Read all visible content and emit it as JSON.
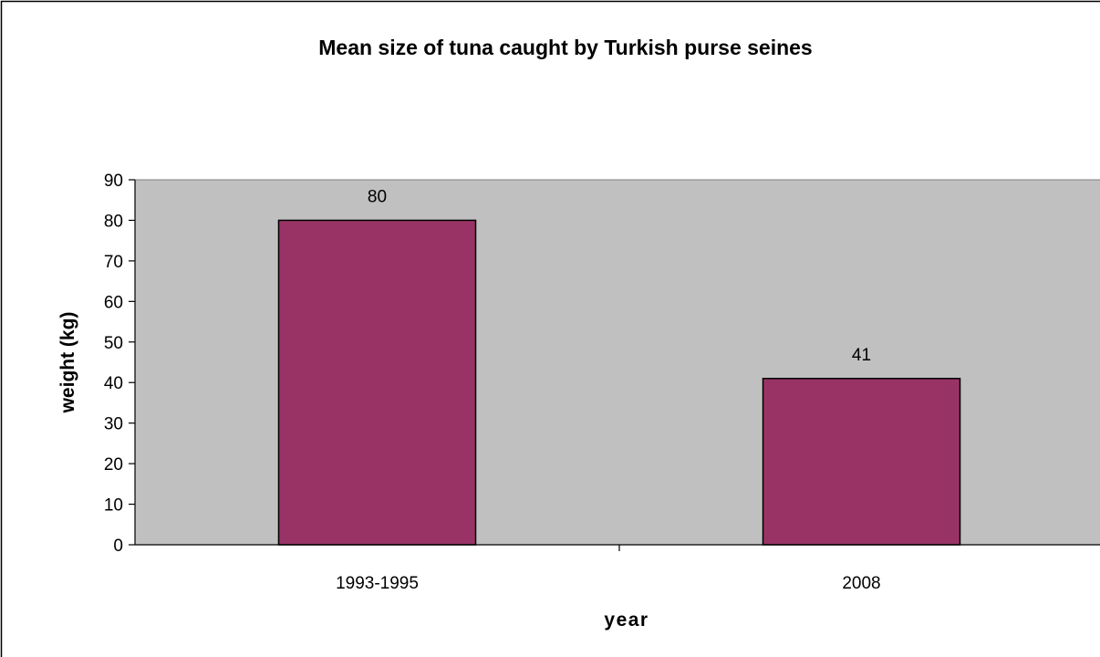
{
  "chart_data": {
    "type": "bar",
    "title": "Mean size of tuna caught by Turkish purse seines",
    "xlabel": "year",
    "ylabel": "weight (kg)",
    "categories": [
      "1993-1995",
      "2008"
    ],
    "values": [
      80,
      41
    ],
    "data_labels": [
      "80",
      "41"
    ],
    "ylim": [
      0,
      90
    ],
    "yticks": [
      "0",
      "10",
      "20",
      "30",
      "40",
      "50",
      "60",
      "70",
      "80",
      "90"
    ],
    "grid": false,
    "legend": "none",
    "colors": {
      "bar": "#993366",
      "plot_area": "#c0c0c0",
      "border": "#000000"
    }
  }
}
